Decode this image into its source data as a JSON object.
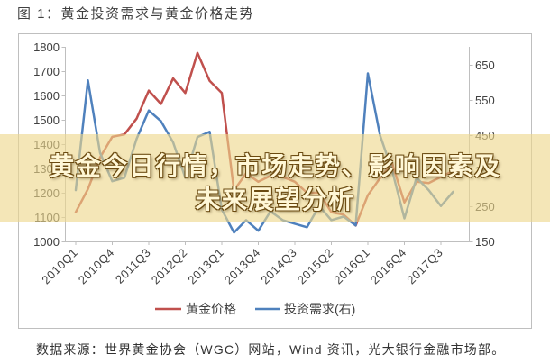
{
  "banner": {
    "line1": "黄金今日行情，市场走势、影响因素及",
    "line2": "未来展望分析"
  },
  "source": "数据来源：世界黄金协会（WGC）网站，Wind 资讯，光大银行金融市场部。",
  "chart_data": {
    "type": "line",
    "title": "图 1：黄金投资需求与黄金价格走势",
    "x_tick_labels": [
      "2010Q1",
      "2010Q4",
      "2011Q3",
      "2012Q2",
      "2013Q1",
      "2013Q4",
      "2014Q3",
      "2015Q2",
      "2016Q1",
      "2016Q4",
      "2017Q3"
    ],
    "y_left": {
      "range": [
        1000,
        1800
      ],
      "ticks": [
        1000,
        1100,
        1200,
        1300,
        1400,
        1500,
        1600,
        1700,
        1800
      ]
    },
    "y_right": {
      "range": [
        150,
        700
      ],
      "ticks": [
        150,
        250,
        350,
        450,
        550,
        650
      ]
    },
    "grid": false,
    "legend": "bottom",
    "series": [
      {
        "name": "黄金价格",
        "axis": "left",
        "color": "#c0504d",
        "values": [
          1120,
          1215,
          1345,
          1430,
          1440,
          1505,
          1620,
          1565,
          1670,
          1610,
          1775,
          1660,
          1610,
          1210,
          1280,
          1245,
          1270,
          1265,
          1245,
          1200,
          1200,
          1120,
          1110,
          1065,
          1190,
          1260,
          1320,
          1160,
          1245,
          1240,
          1265,
          1290
        ]
      },
      {
        "name": "投资需求(右)",
        "axis": "right",
        "color": "#4f81bd",
        "values": [
          295,
          605,
          400,
          320,
          330,
          440,
          520,
          490,
          430,
          330,
          445,
          460,
          240,
          175,
          210,
          180,
          235,
          210,
          200,
          190,
          250,
          210,
          220,
          195,
          625,
          450,
          350,
          215,
          330,
          295,
          250,
          290
        ]
      }
    ]
  }
}
